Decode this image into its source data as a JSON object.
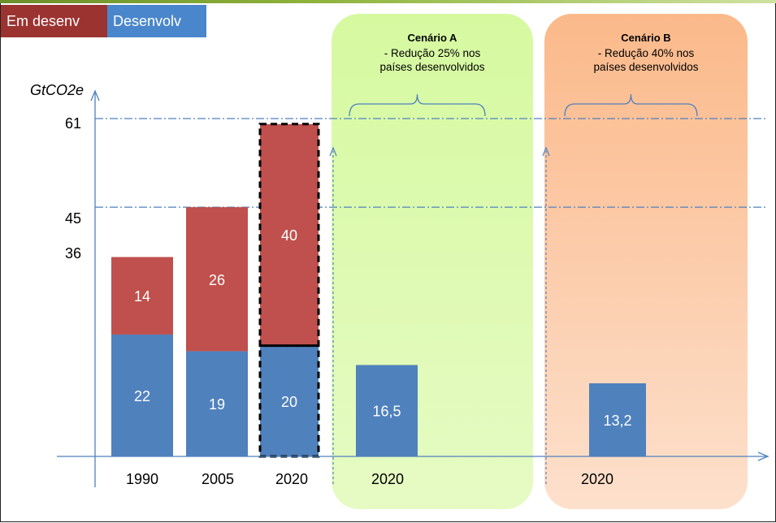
{
  "legend": [
    {
      "label": "Em desenv",
      "color": "#9b3330"
    },
    {
      "label": "Desenvolv",
      "color": "#4a86cc"
    }
  ],
  "scenarios": [
    {
      "title": "Cenário A",
      "line1": "- Redução 25% nos",
      "line2": "países desenvolvidos",
      "color": "#d6f9a0"
    },
    {
      "title": "Cenário B",
      "line1": "- Redução 40% nos",
      "line2": "países desenvolvidos",
      "color": "#fbb98a"
    }
  ],
  "chart_data": {
    "type": "bar",
    "stacked": true,
    "ylabel": "GtCO2e",
    "y_ticks": [
      "61",
      "45",
      "36"
    ],
    "reference_lines": [
      61,
      45
    ],
    "categories": [
      "1990",
      "2005",
      "2020",
      "2020",
      "2020"
    ],
    "series": [
      {
        "name": "Desenvolv",
        "color": "#4f81bd",
        "values": [
          22,
          19,
          20,
          16.5,
          13.2
        ],
        "labels": [
          "22",
          "19",
          "20",
          "16,5",
          "13,2"
        ]
      },
      {
        "name": "Em desenv",
        "color": "#c0504d",
        "values": [
          14,
          26,
          40,
          null,
          null
        ],
        "labels": [
          "14",
          "26",
          "40",
          "",
          ""
        ]
      }
    ],
    "ylim": [
      0,
      61
    ]
  }
}
